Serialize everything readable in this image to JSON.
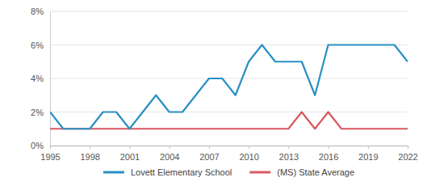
{
  "chart_data": {
    "type": "line",
    "x": [
      1995,
      1996,
      1997,
      1998,
      1999,
      2000,
      2001,
      2002,
      2003,
      2004,
      2005,
      2006,
      2007,
      2008,
      2009,
      2010,
      2011,
      2012,
      2013,
      2014,
      2015,
      2016,
      2017,
      2018,
      2019,
      2020,
      2021,
      2022
    ],
    "series": [
      {
        "name": "Lovett Elementary School",
        "color": "#2a8fc4",
        "values": [
          2,
          1,
          1,
          1,
          2,
          2,
          1,
          2,
          3,
          2,
          2,
          3,
          4,
          4,
          3,
          5,
          6,
          5,
          5,
          5,
          3,
          6,
          6,
          6,
          6,
          6,
          6,
          5
        ]
      },
      {
        "name": "(MS) State Average",
        "color": "#d9585f",
        "values": [
          1,
          1,
          1,
          1,
          1,
          1,
          1,
          1,
          1,
          1,
          1,
          1,
          1,
          1,
          1,
          1,
          1,
          1,
          1,
          2,
          1,
          2,
          1,
          1,
          1,
          1,
          1,
          1
        ]
      }
    ],
    "xlim": [
      1995,
      2022
    ],
    "xticks": [
      1995,
      1998,
      2001,
      2004,
      2007,
      2010,
      2013,
      2016,
      2019,
      2022
    ],
    "ylim": [
      0,
      8
    ],
    "yticks": [
      {
        "value": 0,
        "label": "0%"
      },
      {
        "value": 2,
        "label": "2%"
      },
      {
        "value": 4,
        "label": "4%"
      },
      {
        "value": 6,
        "label": "6%"
      },
      {
        "value": 8,
        "label": "8%"
      }
    ],
    "grid": true,
    "legend": "bottom"
  }
}
